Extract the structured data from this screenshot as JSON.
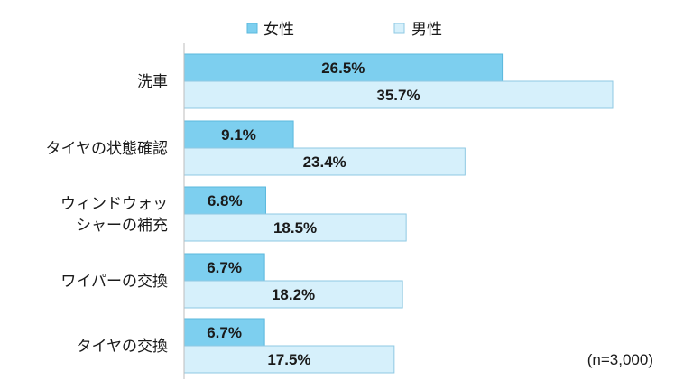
{
  "chart_data": {
    "type": "bar",
    "orientation": "horizontal",
    "categories": [
      [
        "洗車"
      ],
      [
        "タイヤの状態確認"
      ],
      [
        "ウィンドウォッ",
        "シャーの補充"
      ],
      [
        "ワイパーの交換"
      ],
      [
        "タイヤの交換"
      ]
    ],
    "series": [
      {
        "name": "女性",
        "color": "#7dcfef",
        "values": [
          26.5,
          9.1,
          6.8,
          6.7,
          6.7
        ],
        "labels": [
          "26.5%",
          "9.1%",
          "6.8%",
          "6.7%",
          "6.7%"
        ]
      },
      {
        "name": "男性",
        "color": "#d6f0fb",
        "values": [
          35.7,
          23.4,
          18.5,
          18.2,
          17.5
        ],
        "labels": [
          "35.7%",
          "23.4%",
          "18.5%",
          "18.2%",
          "17.5%"
        ]
      }
    ],
    "xlim": [
      0,
      50
    ],
    "legend_position": "top-center",
    "grid": false,
    "note": "(n=3,000)"
  }
}
